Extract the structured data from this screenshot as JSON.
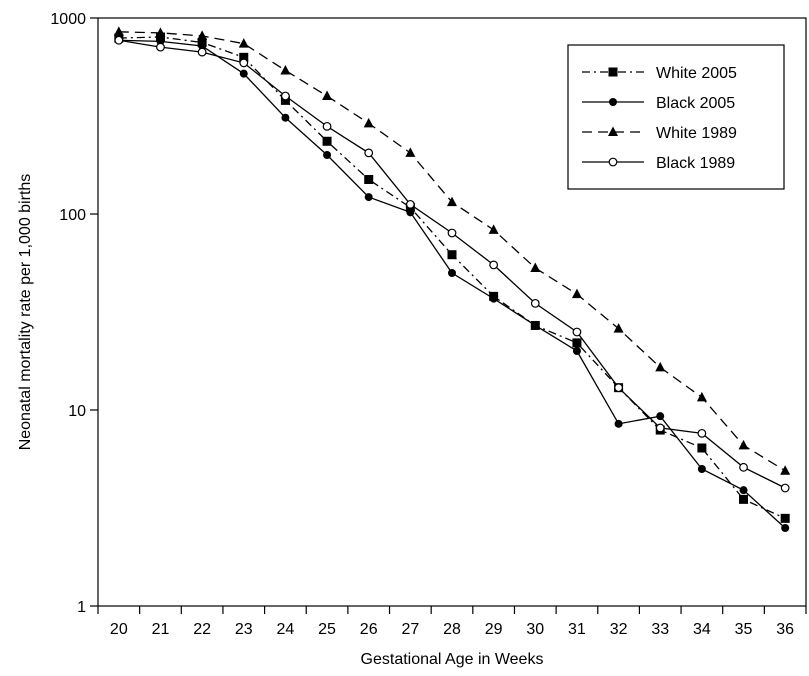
{
  "chart_data": {
    "type": "line",
    "title": "",
    "xlabel": "Gestational Age in Weeks",
    "ylabel": "Neonatal mortality rate per 1,000 births",
    "x": [
      20,
      21,
      22,
      23,
      24,
      25,
      26,
      27,
      28,
      29,
      30,
      31,
      32,
      33,
      34,
      35,
      36
    ],
    "x_tick_labels": [
      "20",
      "21",
      "22",
      "23",
      "24",
      "25",
      "26",
      "27",
      "28",
      "29",
      "30",
      "31",
      "32",
      "33",
      "34",
      "35",
      "36"
    ],
    "y_scale": "log",
    "ylim": [
      1,
      1000
    ],
    "y_ticks": [
      1,
      10,
      100,
      1000
    ],
    "y_tick_labels": [
      "1",
      "10",
      "100",
      "1000"
    ],
    "grid": false,
    "legend_position": "top-right",
    "series": [
      {
        "name": "White 2005",
        "marker": "square-filled",
        "line_style": "dash-dot",
        "values": [
          790,
          800,
          750,
          630,
          380,
          235,
          150,
          108,
          62,
          38,
          27,
          22,
          13,
          7.9,
          6.4,
          3.5,
          2.8
        ]
      },
      {
        "name": "Black 2005",
        "marker": "circle-filled",
        "line_style": "solid",
        "values": [
          770,
          760,
          720,
          520,
          310,
          200,
          122,
          102,
          50,
          37,
          27,
          20,
          8.5,
          9.3,
          5.0,
          3.9,
          2.5
        ]
      },
      {
        "name": "White 1989",
        "marker": "triangle-filled",
        "line_style": "dashed",
        "values": [
          850,
          840,
          810,
          740,
          540,
          400,
          290,
          205,
          115,
          83,
          53,
          39,
          26,
          16.5,
          11.6,
          6.6,
          4.9
        ]
      },
      {
        "name": "Black 1989",
        "marker": "circle-open",
        "line_style": "solid",
        "values": [
          770,
          710,
          670,
          590,
          400,
          280,
          205,
          112,
          80,
          55,
          35,
          25,
          13,
          8.1,
          7.6,
          5.1,
          4.0
        ]
      }
    ]
  }
}
